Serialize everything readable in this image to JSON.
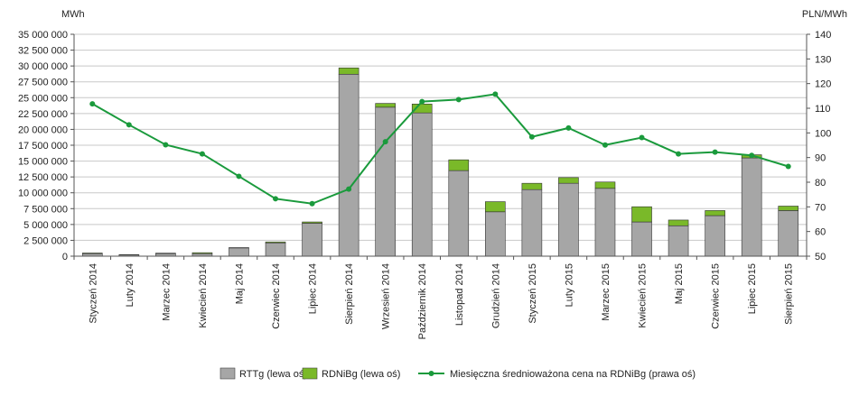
{
  "chart_data": {
    "type": "bar",
    "stacked": true,
    "units": {
      "left": "MWh",
      "right": "PLN/MWh"
    },
    "categories": [
      "Styczeń 2014",
      "Luty 2014",
      "Marzec 2014",
      "Kwiecień 2014",
      "Maj 2014",
      "Czerwiec 2014",
      "Lipiec 2014",
      "Sierpień 2014",
      "Wrzesień 2014",
      "Październik 2014",
      "Listopad 2014",
      "Grudzień 2014",
      "Styczeń 2015",
      "Luty 2015",
      "Marzec 2015",
      "Kwiecień 2015",
      "Maj 2015",
      "Czerwiec 2015",
      "Lipiec 2015",
      "Sierpień 2015"
    ],
    "y_left": {
      "min": 0,
      "max": 35000000,
      "ticks": [
        "0",
        "2 500 000",
        "5 000 000",
        "7 500 000",
        "10 000 000",
        "12 500 000",
        "15 000 000",
        "17 500 000",
        "20 000 000",
        "22 500 000",
        "25 000 000",
        "27 500 000",
        "30 000 000",
        "32 500 000",
        "35 000 000"
      ]
    },
    "y_right": {
      "min": 50,
      "max": 140,
      "ticks": [
        "50",
        "60",
        "70",
        "80",
        "90",
        "100",
        "110",
        "120",
        "130",
        "140"
      ]
    },
    "series": [
      {
        "name": "RTTg (lewa oś)",
        "kind": "bar",
        "axis": "left",
        "color": "#a6a6a6",
        "values": [
          400000,
          200000,
          400000,
          400000,
          1300000,
          2100000,
          5200000,
          28700000,
          23500000,
          22600000,
          13500000,
          7000000,
          10500000,
          11500000,
          10700000,
          5400000,
          4800000,
          6400000,
          15500000,
          7200000
        ]
      },
      {
        "name": "RDNiBg (lewa oś)",
        "kind": "bar",
        "axis": "left",
        "color": "#7ab929",
        "values": [
          100000,
          50000,
          80000,
          150000,
          50000,
          150000,
          200000,
          1000000,
          600000,
          1400000,
          1700000,
          1600000,
          1000000,
          900000,
          1000000,
          2400000,
          900000,
          800000,
          500000,
          700000
        ]
      },
      {
        "name": "Miesięczna średnioważona cena na RDNiBg (prawa oś)",
        "kind": "line",
        "axis": "right",
        "color": "#1a9a3c",
        "values": [
          111.8,
          103.3,
          95.2,
          91.5,
          82.4,
          73.3,
          71.3,
          77.2,
          96.4,
          112.7,
          113.5,
          115.7,
          98.4,
          102.0,
          95.1,
          98.1,
          91.5,
          92.2,
          90.9,
          86.4
        ]
      }
    ],
    "grid": {
      "horizontal": true,
      "vertical": false
    },
    "legend": {
      "position": "bottom"
    }
  }
}
